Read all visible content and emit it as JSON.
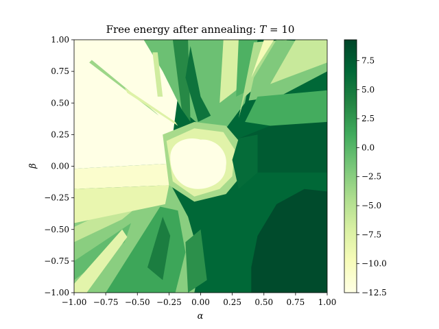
{
  "chart_data": {
    "type": "heatmap",
    "title": "Free energy after annealing: T = 10",
    "title_prefix": "Free energy after annealing: ",
    "title_var": "T",
    "title_suffix": " = 10",
    "xlabel": "α",
    "ylabel": "β",
    "xlim": [
      -1.0,
      1.0
    ],
    "ylim": [
      -1.0,
      1.0
    ],
    "x_ticks": [
      -1.0,
      -0.75,
      -0.5,
      -0.25,
      0.0,
      0.25,
      0.5,
      0.75,
      1.0
    ],
    "y_ticks": [
      -1.0,
      -0.75,
      -0.5,
      -0.25,
      0.0,
      0.25,
      0.5,
      0.75,
      1.0
    ],
    "x_tick_labels": [
      "−1.00",
      "−0.75",
      "−0.50",
      "−0.25",
      "0.00",
      "0.25",
      "0.50",
      "0.75",
      "1.00"
    ],
    "y_tick_labels": [
      "−1.00",
      "−0.75",
      "−0.50",
      "−0.25",
      "0.00",
      "0.25",
      "0.50",
      "0.75",
      "1.00"
    ],
    "colorbar": {
      "min": -12.5,
      "max": 9.3,
      "ticks": [
        7.5,
        5.0,
        2.5,
        0.0,
        -2.5,
        -5.0,
        -7.5,
        -10.0,
        -12.5
      ],
      "tick_labels": [
        "7.5",
        "5.0",
        "2.5",
        "0.0",
        "−2.5",
        "−5.0",
        "−7.5",
        "−10.0",
        "−12.5"
      ],
      "colormap": "YlGn",
      "colors": [
        "#ffffe5",
        "#f7fcb9",
        "#d9f0a3",
        "#addd8e",
        "#78c679",
        "#41ab5d",
        "#238443",
        "#006837",
        "#004529"
      ]
    },
    "regions": [
      {
        "desc": "upper-left plateau",
        "value": -12.5
      },
      {
        "desc": "center bubble",
        "value": -12.5
      },
      {
        "desc": "right / lower-right basin",
        "value": 7.0
      },
      {
        "desc": "far lower-right",
        "value": 8.8
      },
      {
        "desc": "upper ray fan",
        "value": 0.0
      },
      {
        "desc": "lower-left ray fan",
        "value": -1.5
      }
    ]
  }
}
